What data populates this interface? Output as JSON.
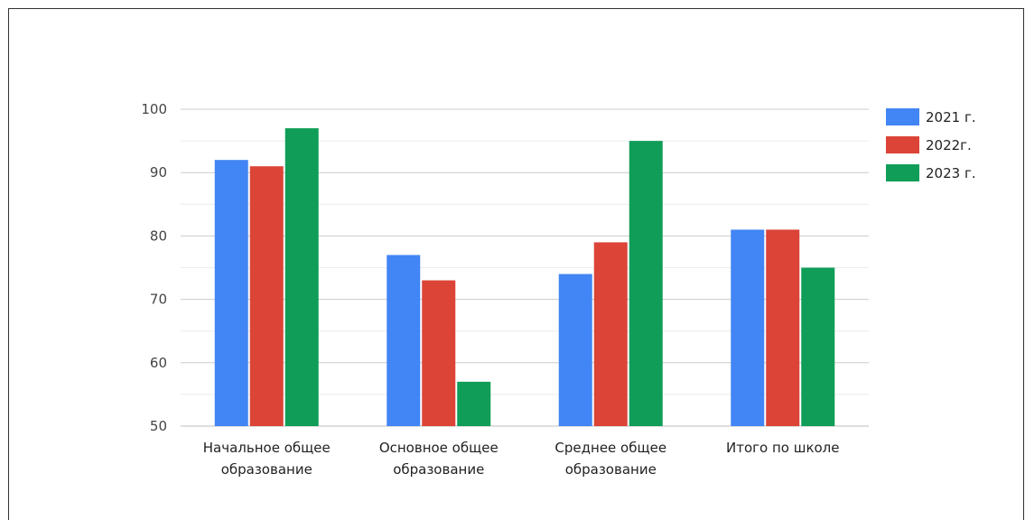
{
  "chart_data": {
    "type": "bar",
    "title": "",
    "xlabel": "",
    "ylabel": "",
    "categories": [
      [
        "Начальное общее",
        "образование"
      ],
      [
        "Основное общее",
        "образование"
      ],
      [
        "Среднее общее",
        "образование"
      ],
      [
        "Итого по школе"
      ]
    ],
    "series": [
      {
        "name": "2021 г.",
        "color": "#4285f4",
        "values": [
          92,
          77,
          74,
          81
        ]
      },
      {
        "name": "2022г.",
        "color": "#db4437",
        "values": [
          91,
          73,
          79,
          81
        ]
      },
      {
        "name": "2023 г.",
        "color": "#0f9d58",
        "values": [
          97,
          57,
          95,
          75
        ]
      }
    ],
    "ylim": [
      50,
      100
    ],
    "yticks": [
      50,
      60,
      70,
      80,
      90,
      100
    ],
    "grid": true,
    "legend_position": "right"
  }
}
